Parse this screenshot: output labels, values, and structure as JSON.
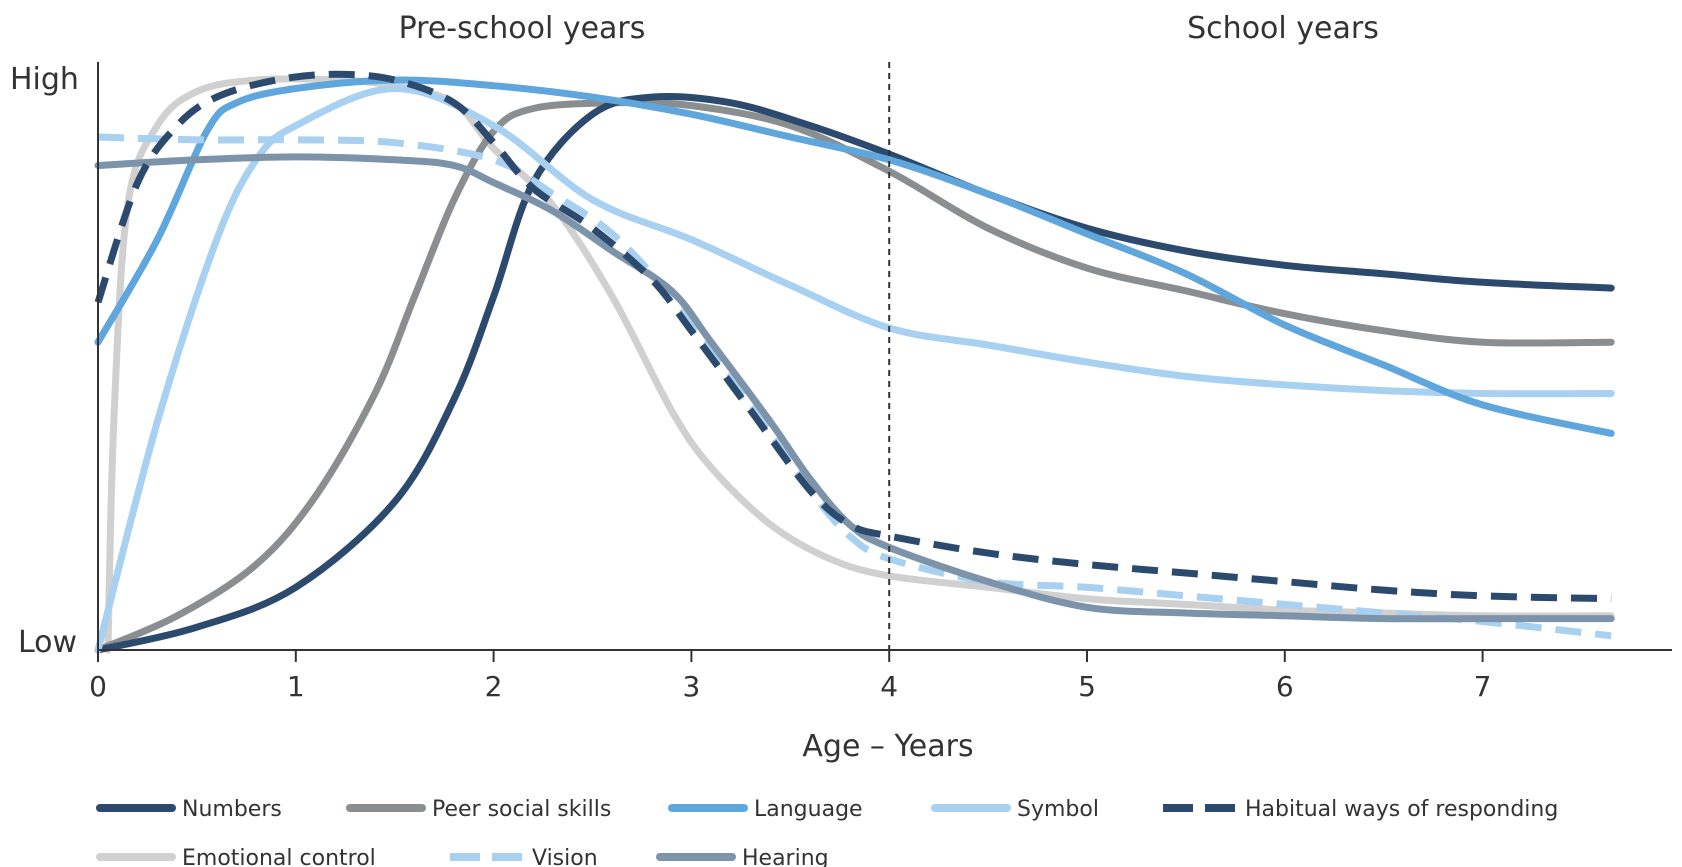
{
  "chart_data": {
    "type": "line",
    "region_labels": [
      "Pre-school years",
      "School years"
    ],
    "x_axis": {
      "label": "Age – Years",
      "range": [
        0,
        8
      ],
      "ticks": [
        0,
        1,
        2,
        3,
        4,
        5,
        6,
        7
      ]
    },
    "y_axis": {
      "range": [
        0,
        1
      ],
      "high_label": "High",
      "low_label": "Low"
    },
    "divider_x": 4,
    "grid": false,
    "legend_position": "bottom",
    "series": [
      {
        "name": "Numbers",
        "color": "#2c4a6e",
        "dash": false,
        "points": [
          [
            0,
            0
          ],
          [
            0.5,
            0.04
          ],
          [
            1,
            0.11
          ],
          [
            1.5,
            0.26
          ],
          [
            1.8,
            0.44
          ],
          [
            2,
            0.62
          ],
          [
            2.2,
            0.82
          ],
          [
            2.5,
            0.94
          ],
          [
            2.8,
            0.97
          ],
          [
            3.2,
            0.96
          ],
          [
            3.6,
            0.92
          ],
          [
            4,
            0.87
          ],
          [
            4.5,
            0.8
          ],
          [
            5,
            0.74
          ],
          [
            5.5,
            0.7
          ],
          [
            6,
            0.675
          ],
          [
            6.5,
            0.66
          ],
          [
            7,
            0.645
          ],
          [
            7.65,
            0.635
          ]
        ]
      },
      {
        "name": "Peer social skills",
        "color": "#8a8e90",
        "dash": false,
        "points": [
          [
            0,
            0
          ],
          [
            0.4,
            0.06
          ],
          [
            0.8,
            0.15
          ],
          [
            1.1,
            0.27
          ],
          [
            1.4,
            0.45
          ],
          [
            1.6,
            0.62
          ],
          [
            1.8,
            0.79
          ],
          [
            2,
            0.91
          ],
          [
            2.2,
            0.95
          ],
          [
            2.6,
            0.96
          ],
          [
            3,
            0.955
          ],
          [
            3.5,
            0.92
          ],
          [
            4,
            0.84
          ],
          [
            4.5,
            0.74
          ],
          [
            5,
            0.67
          ],
          [
            5.5,
            0.63
          ],
          [
            6,
            0.59
          ],
          [
            6.5,
            0.56
          ],
          [
            7,
            0.54
          ],
          [
            7.65,
            0.54
          ]
        ]
      },
      {
        "name": "Language",
        "color": "#5ea6dc",
        "dash": false,
        "points": [
          [
            0,
            0.54
          ],
          [
            0.3,
            0.72
          ],
          [
            0.55,
            0.91
          ],
          [
            0.7,
            0.96
          ],
          [
            1,
            0.985
          ],
          [
            1.5,
            1.0
          ],
          [
            2,
            0.99
          ],
          [
            2.5,
            0.97
          ],
          [
            3,
            0.94
          ],
          [
            3.5,
            0.9
          ],
          [
            4,
            0.86
          ],
          [
            4.5,
            0.8
          ],
          [
            5,
            0.73
          ],
          [
            5.5,
            0.66
          ],
          [
            6,
            0.57
          ],
          [
            6.5,
            0.5
          ],
          [
            7,
            0.43
          ],
          [
            7.65,
            0.38
          ]
        ]
      },
      {
        "name": "Symbol",
        "color": "#a8d0f0",
        "dash": false,
        "points": [
          [
            0,
            0
          ],
          [
            0.3,
            0.4
          ],
          [
            0.6,
            0.72
          ],
          [
            0.8,
            0.86
          ],
          [
            1,
            0.92
          ],
          [
            1.5,
            0.985
          ],
          [
            2,
            0.92
          ],
          [
            2.5,
            0.79
          ],
          [
            3,
            0.72
          ],
          [
            3.5,
            0.64
          ],
          [
            4,
            0.565
          ],
          [
            4.5,
            0.535
          ],
          [
            5,
            0.505
          ],
          [
            5.5,
            0.48
          ],
          [
            6,
            0.465
          ],
          [
            6.5,
            0.455
          ],
          [
            7,
            0.45
          ],
          [
            7.65,
            0.45
          ]
        ]
      },
      {
        "name": "Habitual ways of responding",
        "color": "#2c4a6e",
        "dash": true,
        "points": [
          [
            0,
            0.61
          ],
          [
            0.2,
            0.82
          ],
          [
            0.4,
            0.92
          ],
          [
            0.6,
            0.97
          ],
          [
            0.9,
            1.0
          ],
          [
            1.2,
            1.01
          ],
          [
            1.5,
            1.0
          ],
          [
            1.8,
            0.96
          ],
          [
            2,
            0.89
          ],
          [
            2.2,
            0.81
          ],
          [
            2.5,
            0.74
          ],
          [
            2.8,
            0.65
          ],
          [
            3,
            0.56
          ],
          [
            3.3,
            0.42
          ],
          [
            3.6,
            0.28
          ],
          [
            3.8,
            0.22
          ],
          [
            4,
            0.2
          ],
          [
            4.5,
            0.17
          ],
          [
            5,
            0.15
          ],
          [
            5.5,
            0.135
          ],
          [
            6,
            0.12
          ],
          [
            6.5,
            0.105
          ],
          [
            7,
            0.095
          ],
          [
            7.65,
            0.09
          ]
        ]
      },
      {
        "name": "Emotional control",
        "color": "#d0d0d0",
        "dash": false,
        "points": [
          [
            0.05,
            0
          ],
          [
            0.08,
            0.4
          ],
          [
            0.15,
            0.78
          ],
          [
            0.3,
            0.92
          ],
          [
            0.5,
            0.98
          ],
          [
            0.8,
            1.0
          ],
          [
            1.2,
            1.0
          ],
          [
            1.5,
            0.99
          ],
          [
            1.8,
            0.96
          ],
          [
            2,
            0.88
          ],
          [
            2.3,
            0.78
          ],
          [
            2.6,
            0.62
          ],
          [
            2.9,
            0.42
          ],
          [
            3.1,
            0.32
          ],
          [
            3.4,
            0.22
          ],
          [
            3.7,
            0.16
          ],
          [
            4,
            0.13
          ],
          [
            4.5,
            0.11
          ],
          [
            5,
            0.09
          ],
          [
            5.5,
            0.08
          ],
          [
            6,
            0.07
          ],
          [
            6.5,
            0.065
          ],
          [
            7,
            0.06
          ],
          [
            7.65,
            0.06
          ]
        ]
      },
      {
        "name": "Vision",
        "color": "#a8d0f0",
        "dash": true,
        "points": [
          [
            0,
            0.9
          ],
          [
            0.5,
            0.895
          ],
          [
            1,
            0.895
          ],
          [
            1.5,
            0.89
          ],
          [
            2,
            0.86
          ],
          [
            2.3,
            0.8
          ],
          [
            2.6,
            0.73
          ],
          [
            2.9,
            0.62
          ],
          [
            3.1,
            0.53
          ],
          [
            3.4,
            0.38
          ],
          [
            3.6,
            0.28
          ],
          [
            3.8,
            0.2
          ],
          [
            4,
            0.16
          ],
          [
            4.5,
            0.12
          ],
          [
            5,
            0.11
          ],
          [
            5.5,
            0.095
          ],
          [
            6,
            0.08
          ],
          [
            6.5,
            0.065
          ],
          [
            7,
            0.05
          ],
          [
            7.65,
            0.025
          ]
        ]
      },
      {
        "name": "Hearing",
        "color": "#7d93aa",
        "dash": false,
        "points": [
          [
            0,
            0.85
          ],
          [
            0.5,
            0.86
          ],
          [
            1,
            0.865
          ],
          [
            1.5,
            0.86
          ],
          [
            1.8,
            0.85
          ],
          [
            2,
            0.82
          ],
          [
            2.3,
            0.77
          ],
          [
            2.6,
            0.7
          ],
          [
            2.9,
            0.63
          ],
          [
            3.1,
            0.54
          ],
          [
            3.4,
            0.4
          ],
          [
            3.6,
            0.3
          ],
          [
            3.8,
            0.22
          ],
          [
            4,
            0.18
          ],
          [
            4.5,
            0.12
          ],
          [
            5,
            0.075
          ],
          [
            5.5,
            0.065
          ],
          [
            6,
            0.06
          ],
          [
            6.5,
            0.055
          ],
          [
            7,
            0.055
          ],
          [
            7.65,
            0.055
          ]
        ]
      }
    ]
  }
}
